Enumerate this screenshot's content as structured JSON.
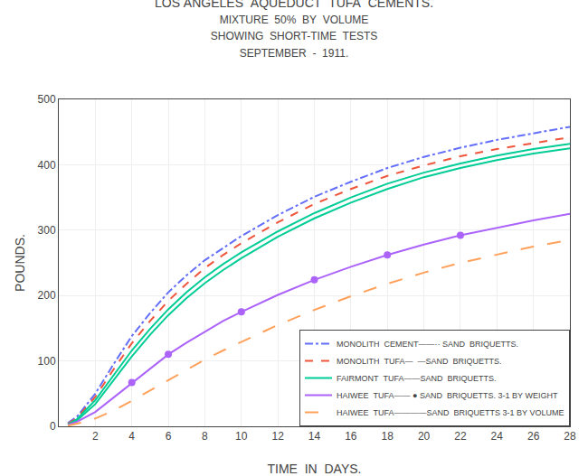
{
  "chart_data": {
    "type": "line",
    "title": "LOS ANGELES  AQUEDUCT  TUFA  CEMENTS.",
    "subtitle": [
      "MIXTURE  50%  BY  VOLUME",
      "SHOWING  SHORT-TIME  TESTS",
      "SEPTEMBER  -  1911."
    ],
    "x_label": "TIME  IN  DAYS.",
    "y_label": "POUNDS.",
    "xlim": [
      0,
      28
    ],
    "ylim": [
      0,
      500
    ],
    "xticks": [
      2,
      4,
      6,
      8,
      10,
      12,
      14,
      16,
      18,
      20,
      22,
      24,
      26,
      28
    ],
    "yticks": [
      0,
      100,
      200,
      300,
      400,
      500
    ],
    "grid": true,
    "legend": "lower right",
    "x": [
      0.5,
      1,
      2,
      3,
      4,
      5,
      6,
      7,
      8,
      9,
      10,
      12,
      14,
      16,
      18,
      20,
      22,
      24,
      26,
      28
    ],
    "series": [
      {
        "name": "MONOLITH  CEMENT——·· SAND  BRIQUETTS.",
        "line_style": "dashdot",
        "values": [
          5,
          15,
          50,
          95,
          138,
          173,
          205,
          231,
          254,
          273,
          291,
          323,
          351,
          374,
          395,
          412,
          426,
          438,
          448,
          458
        ]
      },
      {
        "name": "MONOLITH  TUFA—  —SAND  BRIQUETTS.",
        "line_style": "dash",
        "values": [
          4,
          13,
          45,
          87,
          127,
          161,
          192,
          218,
          242,
          262,
          280,
          312,
          340,
          363,
          383,
          399,
          413,
          424,
          433,
          442
        ]
      },
      {
        "name": "FAIRMONT  TUFA——SAND  BRIQUETTS.",
        "line_style": "solid",
        "values": [
          3,
          11,
          40,
          78,
          116,
          149,
          179,
          205,
          228,
          248,
          266,
          298,
          326,
          350,
          371,
          388,
          402,
          414,
          424,
          432
        ]
      },
      {
        "name": "FAIRMONT  TUFA——SAND  BRIQUETTS.",
        "line_style": "solid",
        "values": [
          2,
          9,
          34,
          70,
          107,
          140,
          170,
          196,
          219,
          239,
          257,
          290,
          318,
          342,
          363,
          381,
          395,
          407,
          417,
          425
        ]
      },
      {
        "name": "HAIWEE  TUFA—— ● SAND  BRIQUETTS. 3-1 BY WEIGHT",
        "line_style": "solid",
        "marker": "circle",
        "values": [
          2,
          7,
          22,
          44,
          67,
          89,
          110,
          128,
          145,
          161,
          175,
          201,
          224,
          244,
          262,
          278,
          292,
          304,
          315,
          325
        ],
        "markers": {
          "x": [
            4,
            6,
            10,
            14,
            18,
            22
          ],
          "values": [
            67,
            110,
            175,
            224,
            262,
            292
          ]
        }
      },
      {
        "name": "HAIWEE  TUFA————SAND  BRIQUETTS 3-1 BY VOLUME",
        "line_style": "longdash",
        "values": [
          1,
          4,
          12,
          24,
          39,
          55,
          71,
          87,
          102,
          116,
          129,
          155,
          178,
          199,
          218,
          235,
          250,
          263,
          275,
          285
        ]
      }
    ]
  }
}
